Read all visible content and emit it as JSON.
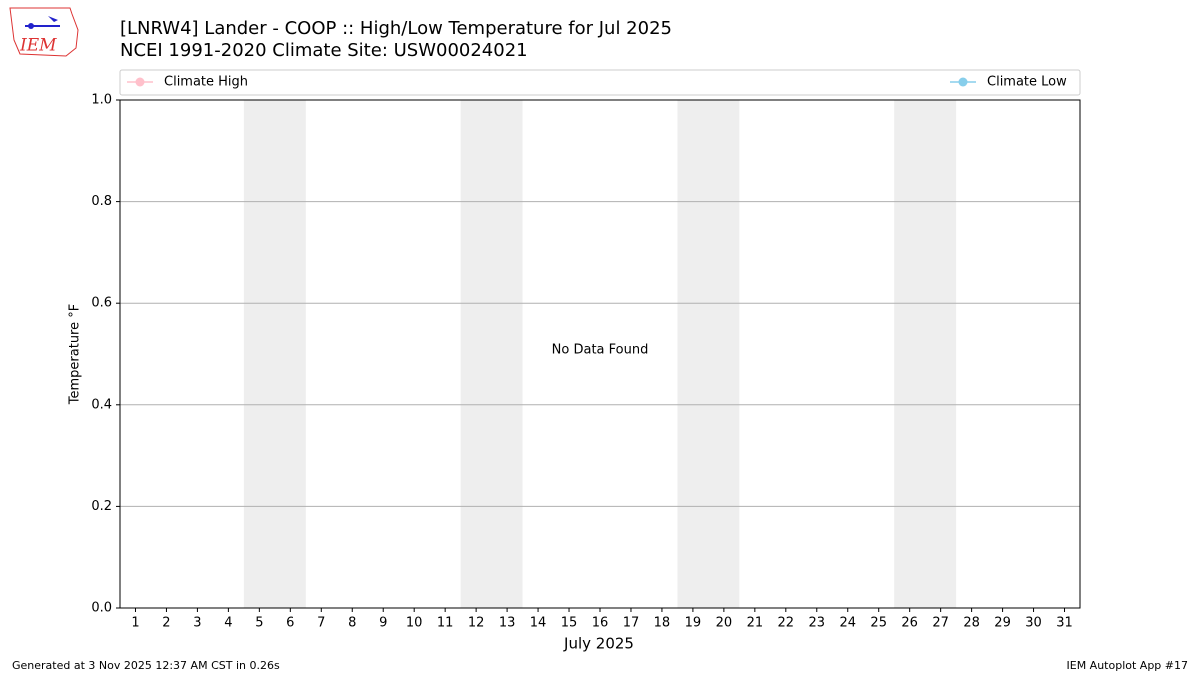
{
  "chart_data": {
    "type": "line",
    "title": "[LNRW4] Lander - COOP :: High/Low Temperature for Jul 2025",
    "subtitle": "NCEI 1991-2020 Climate Site: USW00024021",
    "x_label": "July 2025",
    "y_label": "Temperature °F",
    "annotation": "No Data Found",
    "x": [
      1,
      2,
      3,
      4,
      5,
      6,
      7,
      8,
      9,
      10,
      11,
      12,
      13,
      14,
      15,
      16,
      17,
      18,
      19,
      20,
      21,
      22,
      23,
      24,
      25,
      26,
      27,
      28,
      29,
      30,
      31
    ],
    "series": [
      {
        "name": "Climate High",
        "color": "#ffc0cb",
        "values": [
          null,
          null,
          null,
          null,
          null,
          null,
          null,
          null,
          null,
          null,
          null,
          null,
          null,
          null,
          null,
          null,
          null,
          null,
          null,
          null,
          null,
          null,
          null,
          null,
          null,
          null,
          null,
          null,
          null,
          null,
          null
        ]
      },
      {
        "name": "Climate Low",
        "color": "#87ceeb",
        "values": [
          null,
          null,
          null,
          null,
          null,
          null,
          null,
          null,
          null,
          null,
          null,
          null,
          null,
          null,
          null,
          null,
          null,
          null,
          null,
          null,
          null,
          null,
          null,
          null,
          null,
          null,
          null,
          null,
          null,
          null,
          null
        ]
      }
    ],
    "weekend_spans": [
      [
        4.5,
        6.5
      ],
      [
        11.5,
        13.5
      ],
      [
        18.5,
        20.5
      ],
      [
        25.5,
        27.5
      ]
    ],
    "xlim": [
      0.5,
      31.5
    ],
    "xticks": [
      1,
      2,
      3,
      4,
      5,
      6,
      7,
      8,
      9,
      10,
      11,
      12,
      13,
      14,
      15,
      16,
      17,
      18,
      19,
      20,
      21,
      22,
      23,
      24,
      25,
      26,
      27,
      28,
      29,
      30,
      31
    ],
    "ylim": [
      0,
      1
    ],
    "yticks": [
      {
        "value": 0,
        "label": "0.0"
      },
      0.2,
      0.4,
      0.6,
      0.8,
      {
        "value": 1,
        "label": "1.0"
      }
    ],
    "grid": true
  },
  "footer": {
    "left": "Generated at 3 Nov 2025 12:37 AM CST in 0.26s",
    "right": "IEM Autoplot App #17"
  },
  "logo_text": "IEM"
}
